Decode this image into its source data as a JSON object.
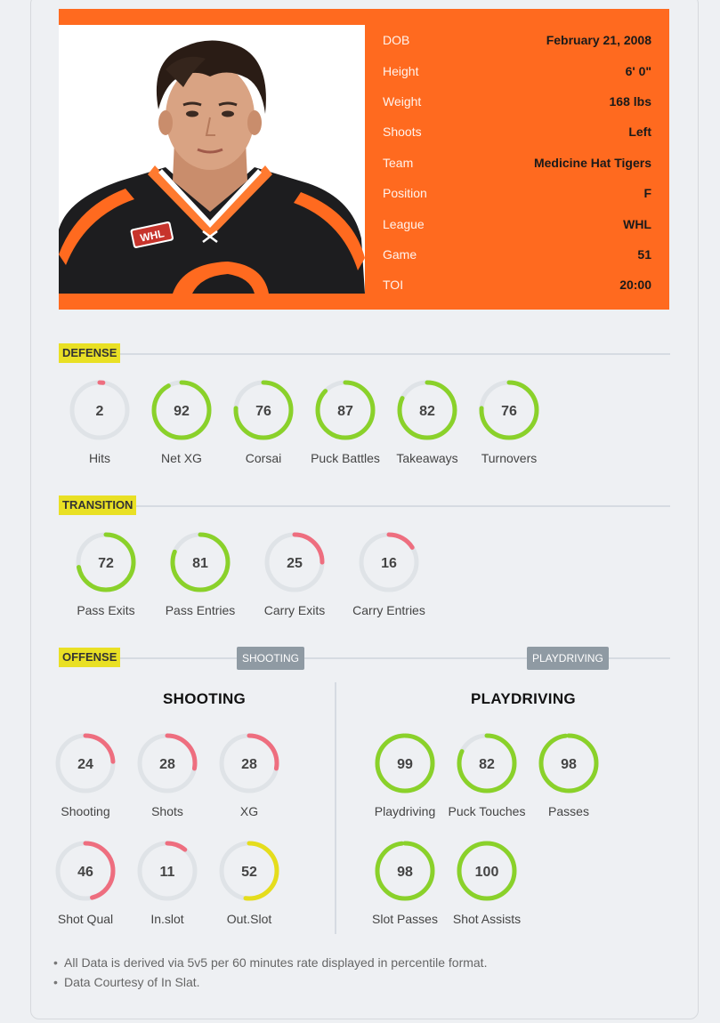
{
  "player": {
    "info": [
      {
        "label": "DOB",
        "value": "February 21, 2008"
      },
      {
        "label": "Height",
        "value": "6' 0\""
      },
      {
        "label": "Weight",
        "value": "168 lbs"
      },
      {
        "label": "Shoots",
        "value": "Left"
      },
      {
        "label": "Team",
        "value": "Medicine Hat Tigers"
      },
      {
        "label": "Position",
        "value": "F"
      },
      {
        "label": "League",
        "value": "WHL"
      },
      {
        "label": "Game",
        "value": "51"
      },
      {
        "label": "TOI",
        "value": "20:00"
      }
    ],
    "jersey_logo": "WHL"
  },
  "colors": {
    "accent_orange": "#ff6a1f",
    "tag_yellow": "#e9e024",
    "good_green": "#8ad12a",
    "mid_yellow": "#e5dd1c",
    "low_red": "#ee6e7f",
    "ring_track": "#dfe3e7",
    "pill_gray": "#8f9aa3"
  },
  "sections": {
    "defense": {
      "tag": "DEFENSE",
      "stats": [
        {
          "label": "Hits",
          "value": 2
        },
        {
          "label": "Net XG",
          "value": 92
        },
        {
          "label": "Corsai",
          "value": 76
        },
        {
          "label": "Puck Battles",
          "value": 87
        },
        {
          "label": "Takeaways",
          "value": 82
        },
        {
          "label": "Turnovers",
          "value": 76
        }
      ]
    },
    "transition": {
      "tag": "TRANSITION",
      "stats": [
        {
          "label": "Pass Exits",
          "value": 72
        },
        {
          "label": "Pass Entries",
          "value": 81
        },
        {
          "label": "Carry Exits",
          "value": 25
        },
        {
          "label": "Carry Entries",
          "value": 16
        }
      ]
    },
    "offense": {
      "tag": "OFFENSE",
      "pill_shooting": "SHOOTING",
      "pill_playdriving": "PLAYDRIVING",
      "shooting": {
        "title": "SHOOTING",
        "stats": [
          {
            "label": "Shooting",
            "value": 24
          },
          {
            "label": "Shots",
            "value": 28
          },
          {
            "label": "XG",
            "value": 28
          },
          {
            "label": "Shot Qual",
            "value": 46
          },
          {
            "label": "In.slot",
            "value": 11
          },
          {
            "label": "Out.Slot",
            "value": 52
          }
        ]
      },
      "playdriving": {
        "title": "PLAYDRIVING",
        "stats": [
          {
            "label": "Playdriving",
            "value": 99
          },
          {
            "label": "Puck Touches",
            "value": 82
          },
          {
            "label": "Passes",
            "value": 98
          },
          {
            "label": "Slot Passes",
            "value": 98
          },
          {
            "label": "Shot Assists",
            "value": 100
          }
        ]
      }
    }
  },
  "notes": [
    "All Data is derived via 5v5 per 60 minutes rate displayed in percentile format.",
    "Data Courtesy of In Slat."
  ]
}
